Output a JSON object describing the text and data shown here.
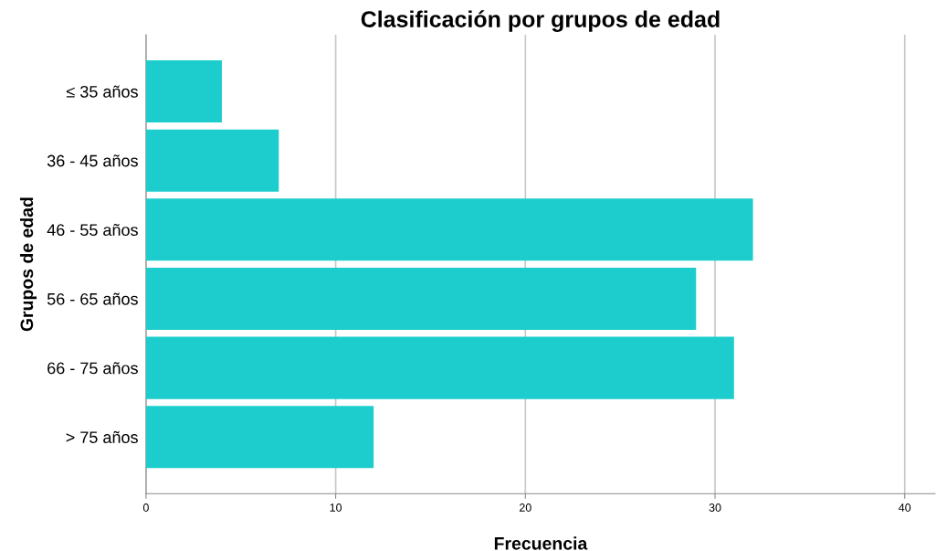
{
  "chart_data": {
    "type": "bar",
    "orientation": "horizontal",
    "title": "Clasificación por grupos de edad",
    "xlabel": "Frecuencia",
    "ylabel": "Grupos de edad",
    "categories": [
      "≤ 35 años",
      "36 - 45 años",
      "46 - 55 años",
      "56 - 65 años",
      "66 - 75 años",
      "> 75 años"
    ],
    "values": [
      4,
      7,
      32,
      29,
      31,
      12
    ],
    "color": "#1dcdcd",
    "xlim": [
      0,
      41.6
    ],
    "xticks": [
      0,
      10,
      20,
      30,
      40
    ],
    "grid": "x",
    "legend": false
  }
}
